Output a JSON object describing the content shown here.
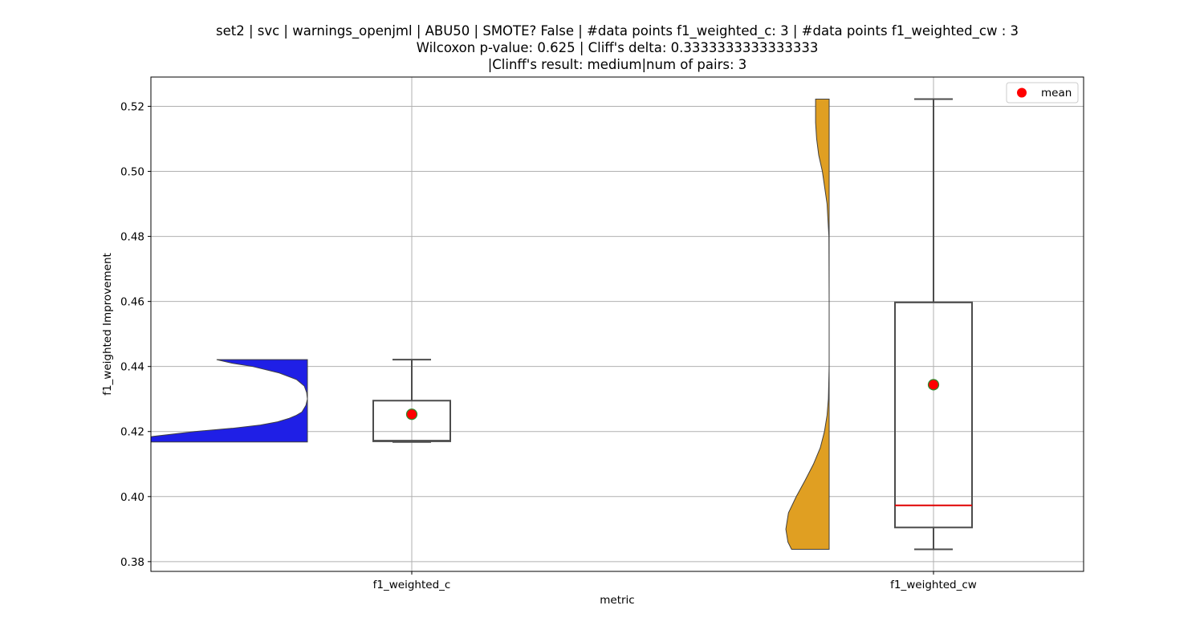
{
  "chart_data": {
    "type": "violin+box",
    "title_lines": [
      "set2 | svc | warnings_openjml | ABU50 | SMOTE? False | #data points f1_weighted_c: 3 | #data points f1_weighted_cw : 3",
      "Wilcoxon p-value: 0.625 | Cliff's delta: 0.3333333333333333",
      "|Clinff's result: medium|num of pairs: 3"
    ],
    "xlabel": "metric",
    "ylabel": "f1_weighted Improvement",
    "categories": [
      "f1_weighted_c",
      "f1_weighted_cw"
    ],
    "ylim": [
      0.377,
      0.529
    ],
    "yticks": [
      0.38,
      0.4,
      0.42,
      0.44,
      0.46,
      0.48,
      0.5,
      0.52
    ],
    "ytick_labels": [
      "0.38",
      "0.40",
      "0.42",
      "0.44",
      "0.46",
      "0.48",
      "0.50",
      "0.52"
    ],
    "grid": true,
    "legend": {
      "placement": "top-right",
      "entries": [
        {
          "label": "mean",
          "color": "#ff0000"
        }
      ]
    },
    "colors": {
      "violin_c": "#1f1fe6",
      "violin_cw": "#e09f22",
      "box_edge": "#4c4c4c",
      "mean_marker": "#ff0000",
      "mean_edge": "#2e8b2e",
      "median_cw": "#e00000",
      "grid": "#b0b0b0"
    },
    "series": [
      {
        "name": "f1_weighted_c",
        "box": {
          "min": 0.4168,
          "q1": 0.417,
          "median": 0.4172,
          "q3": 0.4295,
          "max": 0.4421,
          "mean": 0.4253
        },
        "violin": {
          "side": "left",
          "ymin": 0.4168,
          "ymax": 0.4421,
          "profile": [
            [
              0.4168,
              1.1
            ],
            [
              0.4185,
              0.99
            ],
            [
              0.42,
              0.72
            ],
            [
              0.421,
              0.48
            ],
            [
              0.422,
              0.3
            ],
            [
              0.423,
              0.19
            ],
            [
              0.424,
              0.12
            ],
            [
              0.425,
              0.07
            ],
            [
              0.426,
              0.035
            ],
            [
              0.428,
              0.01
            ],
            [
              0.43,
              0.0
            ],
            [
              0.432,
              0.005
            ],
            [
              0.434,
              0.02
            ],
            [
              0.436,
              0.07
            ],
            [
              0.438,
              0.18
            ],
            [
              0.44,
              0.35
            ],
            [
              0.441,
              0.48
            ],
            [
              0.4421,
              0.58
            ]
          ]
        }
      },
      {
        "name": "f1_weighted_cw",
        "box": {
          "min": 0.3838,
          "q1": 0.3905,
          "median": 0.3973,
          "q3": 0.4597,
          "max": 0.5222,
          "mean": 0.4344
        },
        "violin": {
          "side": "left",
          "ymin": 0.3838,
          "ymax": 0.5222,
          "profile": [
            [
              0.3838,
              0.72
            ],
            [
              0.386,
              0.79
            ],
            [
              0.39,
              0.83
            ],
            [
              0.395,
              0.78
            ],
            [
              0.4,
              0.63
            ],
            [
              0.405,
              0.46
            ],
            [
              0.41,
              0.3
            ],
            [
              0.415,
              0.17
            ],
            [
              0.42,
              0.09
            ],
            [
              0.425,
              0.04
            ],
            [
              0.43,
              0.015
            ],
            [
              0.44,
              0.0
            ],
            [
              0.46,
              0.0
            ],
            [
              0.48,
              0.005
            ],
            [
              0.49,
              0.04
            ],
            [
              0.5,
              0.13
            ],
            [
              0.505,
              0.2
            ],
            [
              0.51,
              0.24
            ],
            [
              0.515,
              0.26
            ],
            [
              0.5222,
              0.26
            ]
          ]
        }
      }
    ]
  }
}
